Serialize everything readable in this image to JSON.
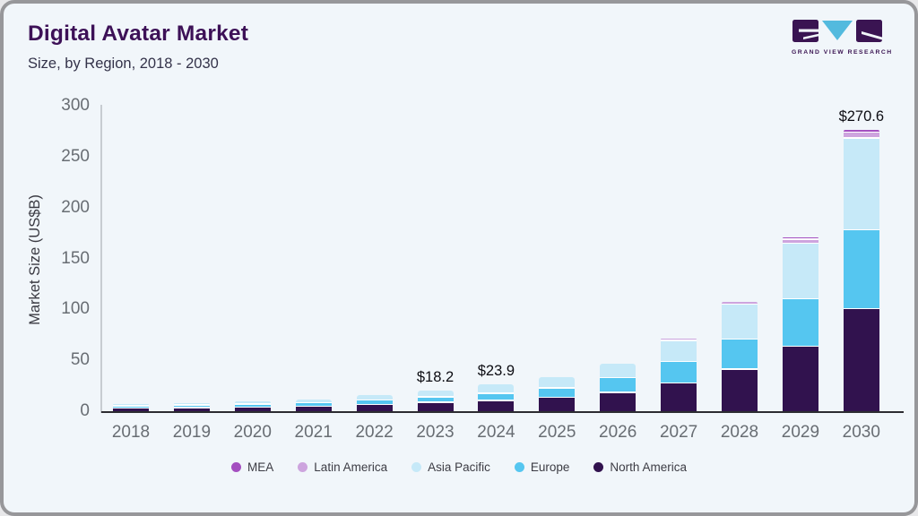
{
  "header": {
    "title": "Digital Avatar Market",
    "subtitle": "Size, by Region, 2018 - 2030"
  },
  "logo": {
    "caption": "GRAND VIEW RESEARCH"
  },
  "colors": {
    "background": "#f1f6fa",
    "frame": "#97979a",
    "title_text": "#3d1157",
    "axis_text": "#686d73",
    "annotation_text": "#0c0c12"
  },
  "chart_data": {
    "type": "bar",
    "stacked": true,
    "title": "Digital Avatar Market Size, by Region, 2018 - 2030",
    "xlabel": "",
    "ylabel": "Market Size (US$B)",
    "ylim": [
      0,
      300
    ],
    "yticks": [
      0,
      50,
      100,
      150,
      200,
      250,
      300
    ],
    "grid": false,
    "legend_position": "bottom",
    "categories": [
      "2018",
      "2019",
      "2020",
      "2021",
      "2022",
      "2023",
      "2024",
      "2025",
      "2026",
      "2027",
      "2028",
      "2029",
      "2030"
    ],
    "series": [
      {
        "name": "North America",
        "color": "#31124e",
        "values": [
          2.2,
          2.7,
          3.3,
          4.2,
          6.0,
          8.2,
          9.9,
          13.0,
          17.8,
          27.0,
          40.5,
          63.0,
          100.0
        ]
      },
      {
        "name": "Europe",
        "color": "#55c6f0",
        "values": [
          1.1,
          1.3,
          1.6,
          2.0,
          3.0,
          4.1,
          5.9,
          7.8,
          13.2,
          19.8,
          28.5,
          45.5,
          76.0
        ]
      },
      {
        "name": "Asia Pacific",
        "color": "#c6e9f8",
        "values": [
          1.3,
          1.6,
          2.0,
          2.5,
          4.0,
          5.5,
          7.6,
          10.3,
          12.8,
          19.2,
          33.0,
          53.0,
          89.0
        ]
      },
      {
        "name": "Latin America",
        "color": "#cda4de",
        "values": [
          0.1,
          0.1,
          0.15,
          0.2,
          0.3,
          0.3,
          0.4,
          0.6,
          0.6,
          0.9,
          1.5,
          2.8,
          4.3
        ]
      },
      {
        "name": "MEA",
        "color": "#a44fc0",
        "values": [
          0.05,
          0.05,
          0.05,
          0.1,
          0.1,
          0.1,
          0.1,
          0.3,
          0.2,
          0.3,
          0.5,
          0.7,
          1.3
        ]
      }
    ],
    "annotations": [
      {
        "category": "2023",
        "text": "$18.2"
      },
      {
        "category": "2024",
        "text": "$23.9"
      },
      {
        "category": "2030",
        "text": "$270.6"
      }
    ]
  }
}
